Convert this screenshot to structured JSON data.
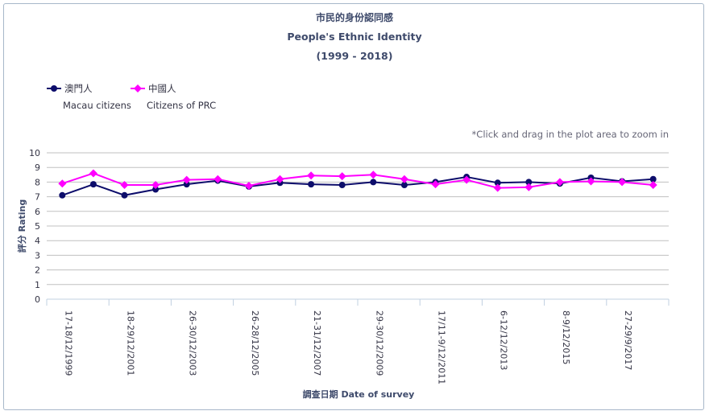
{
  "title_zh": "市民的身份認同感",
  "title_en": "People's Ethnic Identity",
  "title_years": "(1999 - 2018)",
  "zoom_hint": "*Click and drag in the plot area to zoom in",
  "colors": {
    "macau": "#0d0d6b",
    "prc": "#ff00ff",
    "grid": "#c0c0c0",
    "axis": "#c0d0e0",
    "frame": "#a7b7c9"
  },
  "chart_data": {
    "type": "line",
    "ylabel": "評分 Rating",
    "xlabel": "調查日期 Date of survey",
    "ylim": [
      0,
      10
    ],
    "yticks": [
      "0",
      "1",
      "2",
      "3",
      "4",
      "5",
      "6",
      "7",
      "8",
      "9",
      "10"
    ],
    "xticklabels": [
      "17-18/12/1999",
      "18-29/12/2001",
      "26-30/12/2003",
      "26-28/12/2005",
      "21-31/12/2007",
      "29-30/12/2009",
      "17/11-9/12/2011",
      "6-12/12/2013",
      "8-9/12/2015",
      "27-29/9/2017"
    ],
    "xtick_every": 2,
    "series": [
      {
        "name_zh": "澳門人",
        "name_en": "Macau citizens",
        "color": "#0d0d6b",
        "values": [
          7.1,
          7.85,
          7.1,
          7.5,
          7.85,
          8.1,
          7.7,
          7.95,
          7.85,
          7.8,
          8.0,
          7.8,
          8.0,
          8.35,
          7.95,
          8.0,
          7.9,
          8.3,
          8.05,
          8.2
        ]
      },
      {
        "name_zh": "中國人",
        "name_en": "Citizens of PRC",
        "color": "#ff00ff",
        "values": [
          7.9,
          8.6,
          7.8,
          7.8,
          8.15,
          8.2,
          7.75,
          8.2,
          8.45,
          8.4,
          8.5,
          8.2,
          7.85,
          8.15,
          7.6,
          7.65,
          8.0,
          8.05,
          8.0,
          7.8
        ]
      }
    ]
  }
}
